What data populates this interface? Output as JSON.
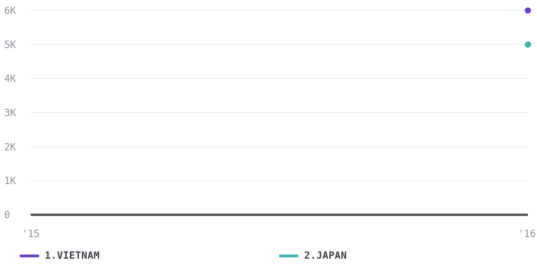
{
  "chart_data": {
    "type": "line",
    "x": [
      "'15",
      "'16"
    ],
    "x_tick_labels": [
      "'15",
      "'16"
    ],
    "y_ticks": [
      0,
      1000,
      2000,
      3000,
      4000,
      5000,
      6000
    ],
    "y_tick_labels": [
      "0",
      "1K",
      "2K",
      "3K",
      "4K",
      "5K",
      "6K"
    ],
    "ylim": [
      0,
      6000
    ],
    "grid": true,
    "legend": "bottom",
    "series": [
      {
        "name": "1.VIETNAM",
        "color": "#6b3fc4",
        "values": [
          null,
          6000
        ]
      },
      {
        "name": "2.JAPAN",
        "color": "#3ab5b0",
        "values": [
          null,
          5000
        ]
      }
    ]
  }
}
